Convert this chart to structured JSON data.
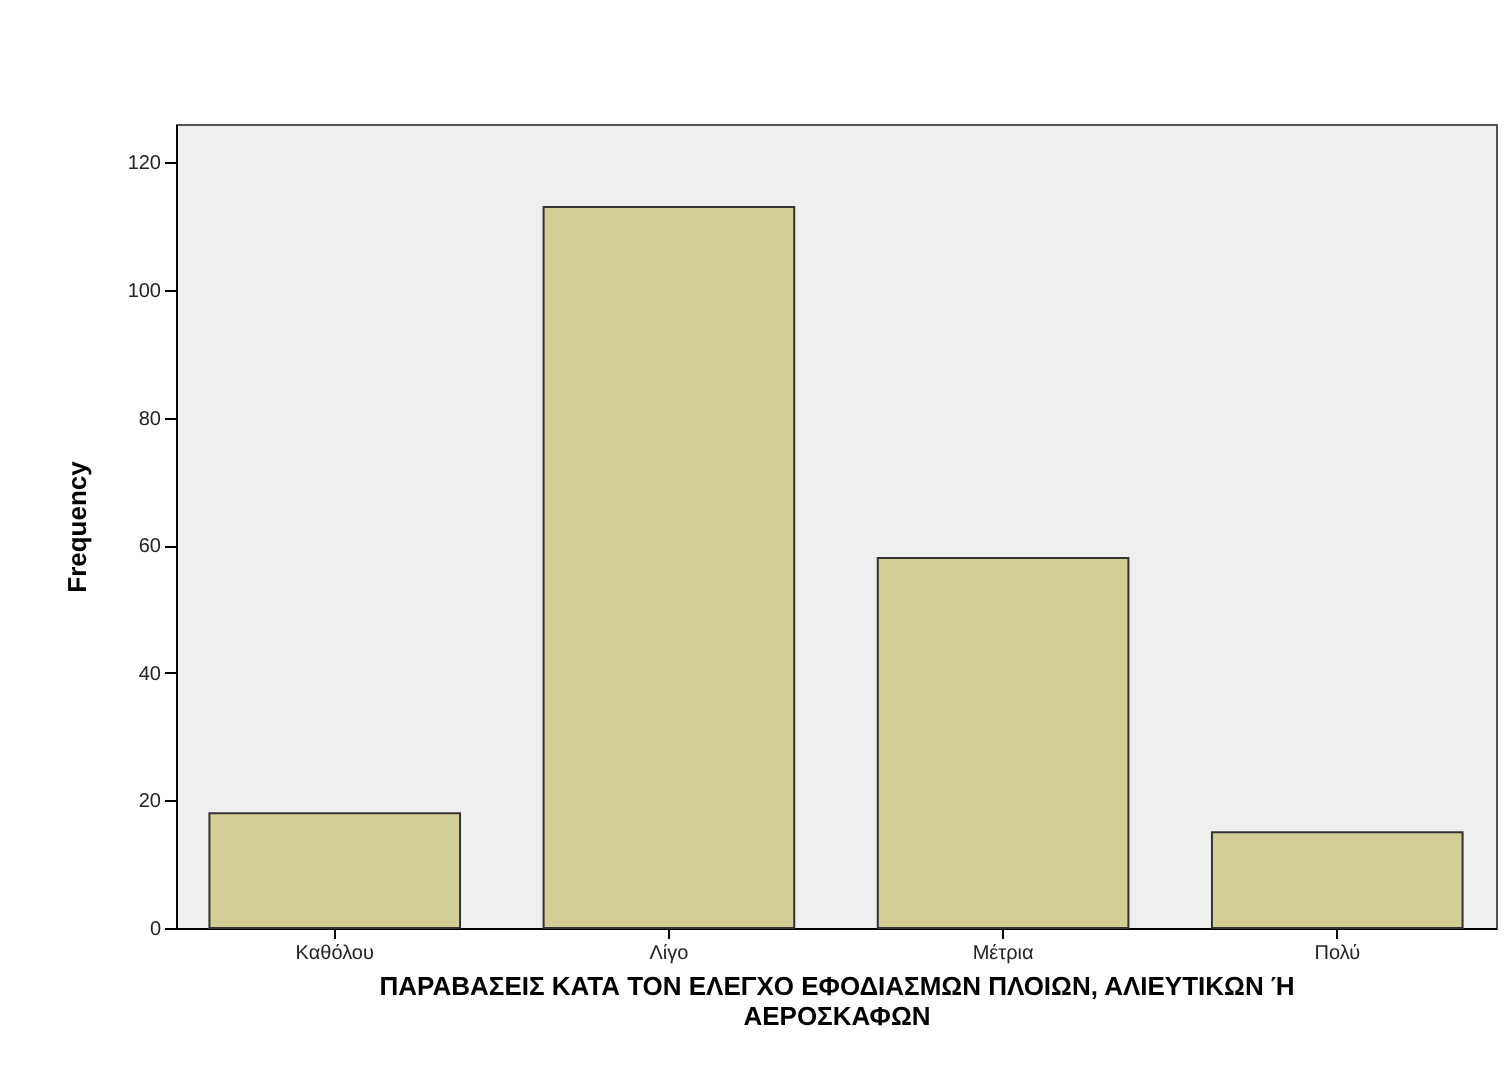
{
  "chart_data": {
    "type": "bar",
    "categories": [
      "Καθόλου",
      "Λίγο",
      "Μέτρια",
      "Πολύ"
    ],
    "values": [
      18,
      113,
      58,
      15
    ],
    "color": "#d3cd96",
    "xlabel": "ΠΑΡΑΒΑΣΕΙΣ ΚΑΤΑ ΤΟΝ ΕΛΕΓΧΟ ΕΦΟΔΙΑΣΜΩΝ ΠΛΟΙΩΝ, ΑΛΙΕΥΤΙΚΩΝ Ή ΑΕΡΟΣΚΑΦΩΝ",
    "ylabel": "Frequency",
    "ylim": [
      0,
      126
    ],
    "yticks": [
      0,
      20,
      40,
      60,
      80,
      100,
      120
    ],
    "grid": false
  }
}
